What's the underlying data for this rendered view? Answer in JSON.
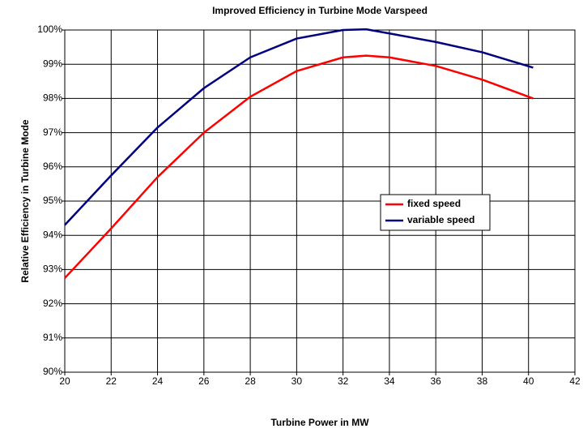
{
  "chart_data": {
    "type": "line",
    "title": "Improved Efficiency in Turbine Mode Varspeed",
    "xlabel": "Turbine Power in MW",
    "ylabel": "Relative Efficiency in Turbine Mode",
    "x": [
      20,
      22,
      24,
      26,
      28,
      30,
      32,
      33,
      34,
      36,
      38,
      40.2
    ],
    "series": [
      {
        "name": "fixed speed",
        "color": "#ff0000",
        "values": [
          92.75,
          94.2,
          95.7,
          97.0,
          98.05,
          98.8,
          99.2,
          99.25,
          99.2,
          98.95,
          98.55,
          98.0
        ]
      },
      {
        "name": "variable speed",
        "color": "#000080",
        "values": [
          94.3,
          95.75,
          97.15,
          98.3,
          99.2,
          99.75,
          100.0,
          100.02,
          99.9,
          99.65,
          99.35,
          98.9
        ]
      }
    ],
    "xlim": [
      20,
      42
    ],
    "xticks": [
      20,
      22,
      24,
      26,
      28,
      30,
      32,
      34,
      36,
      38,
      40,
      42
    ],
    "ylim": [
      90,
      100
    ],
    "yticks": [
      {
        "value": 90,
        "label": "90%"
      },
      {
        "value": 91,
        "label": "91%"
      },
      {
        "value": 92,
        "label": "92%"
      },
      {
        "value": 93,
        "label": "93%"
      },
      {
        "value": 94,
        "label": "94%"
      },
      {
        "value": 95,
        "label": "95%"
      },
      {
        "value": 96,
        "label": "96%"
      },
      {
        "value": 97,
        "label": "97%"
      },
      {
        "value": 98,
        "label": "98%"
      },
      {
        "value": 99,
        "label": "99%"
      },
      {
        "value": 100,
        "label": "100%"
      }
    ],
    "grid": true,
    "legend": "center-right"
  }
}
